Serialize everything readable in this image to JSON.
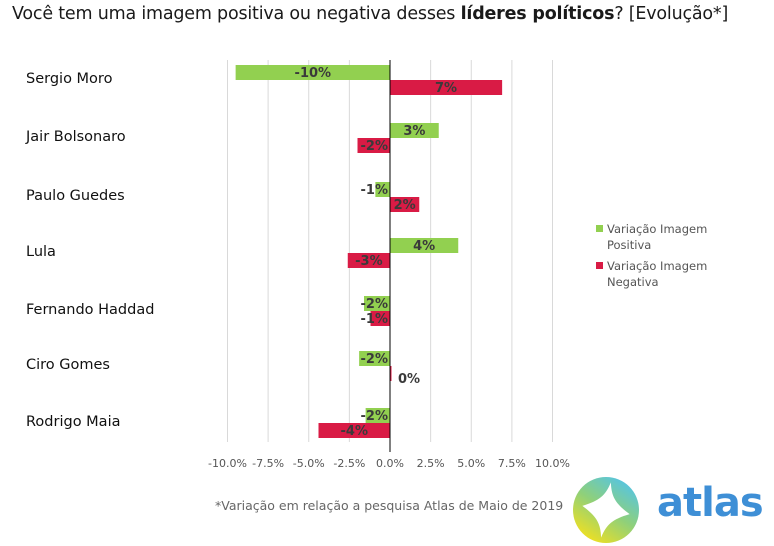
{
  "title": {
    "prefix": "Você tem uma imagem positiva ou negativa desses ",
    "bold": "líderes políticos",
    "suffix": "? [Evolução*]"
  },
  "footnote": "*Variação em relação a pesquisa Atlas de Maio de 2019",
  "logo": {
    "text": "atlas",
    "icon": "atlas-compass-logo-icon"
  },
  "colors": {
    "positive": "#92d050",
    "negative": "#d91b45",
    "grid": "#d9d9d9",
    "axis": "#000000"
  },
  "chart_data": {
    "type": "bar",
    "orientation": "horizontal",
    "title": "Você tem uma imagem positiva ou negativa desses líderes políticos? [Evolução*]",
    "xlabel": "",
    "ylabel": "",
    "xlim": [
      -10,
      10
    ],
    "x_ticks": [
      -10,
      -7.5,
      -5,
      -2.5,
      0,
      2.5,
      5,
      7.5,
      10
    ],
    "x_tick_labels": [
      "-10.0%",
      "-7.5%",
      "-5.0%",
      "-2.5%",
      "0.0%",
      "2.5%",
      "5.0%",
      "7.5%",
      "10.0%"
    ],
    "grid": true,
    "legend_position": "right",
    "categories": [
      "Sergio Moro",
      "Jair Bolsonaro",
      "Paulo Guedes",
      "Lula",
      "Fernando Haddad",
      "Ciro Gomes",
      "Rodrigo Maia"
    ],
    "series": [
      {
        "name": "Variação Imagem Positiva",
        "color": "#92d050",
        "values": [
          -9.5,
          3.0,
          -0.9,
          4.2,
          -1.6,
          -1.9,
          -1.5
        ],
        "labels": [
          "-10%",
          "3%",
          "-1%",
          "4%",
          "-2%",
          "-2%",
          "-2%"
        ]
      },
      {
        "name": "Variação Imagem Negativa",
        "color": "#d91b45",
        "values": [
          6.9,
          -2.0,
          1.8,
          -2.6,
          -1.2,
          0.0,
          -4.4
        ],
        "labels": [
          "7%",
          "-2%",
          "2%",
          "-3%",
          "-1%",
          "0%",
          "-4%"
        ]
      }
    ]
  }
}
